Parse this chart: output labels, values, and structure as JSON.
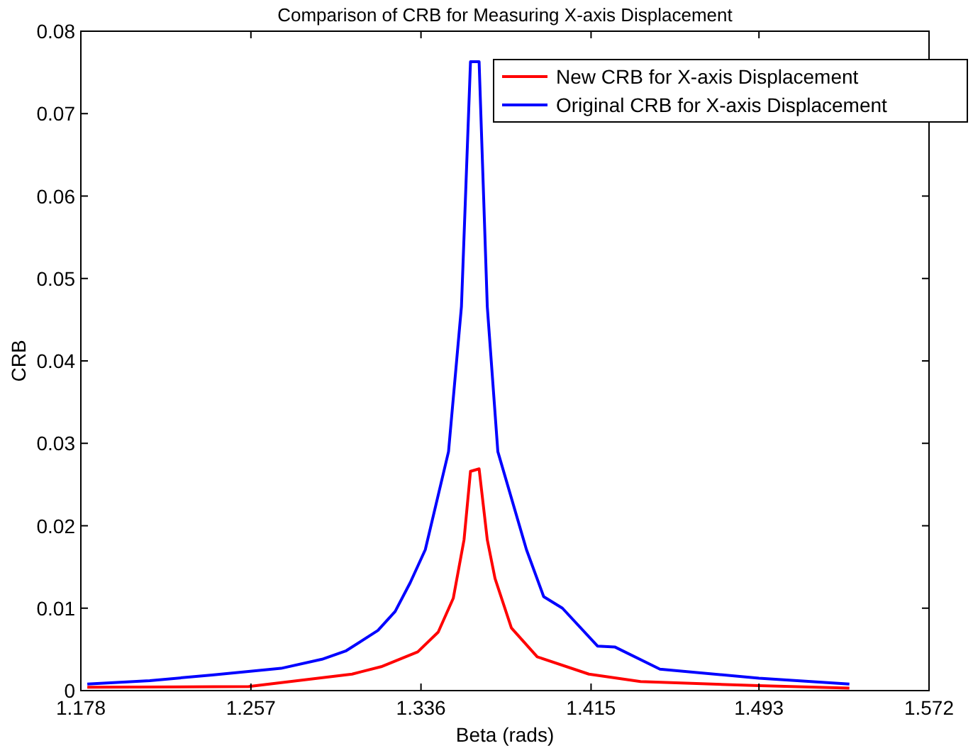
{
  "chart_data": {
    "type": "line",
    "title": "Comparison of CRB for Measuring X-axis Displacement",
    "xlabel": "Beta (rads)",
    "ylabel": "CRB",
    "xlim": [
      1.178,
      1.572
    ],
    "xticks": [
      1.178,
      1.257,
      1.336,
      1.415,
      1.493,
      1.572
    ],
    "ylim": [
      0,
      0.08
    ],
    "yticks": [
      0,
      0.01,
      0.02,
      0.03,
      0.04,
      0.05,
      0.06,
      0.07,
      0.08
    ],
    "grid": false,
    "legend": "top right",
    "line_style": "solid",
    "series": [
      {
        "name": "New CRB for X-axis Displacement",
        "color": "#ff0000",
        "x": [
          1.181,
          1.256,
          1.304,
          1.3175,
          1.3345,
          1.344,
          1.351,
          1.356,
          1.359,
          1.363,
          1.3668,
          1.3704,
          1.378,
          1.39,
          1.414,
          1.438,
          1.493,
          1.535
        ],
        "values": [
          0.0004,
          0.0005,
          0.002,
          0.0029,
          0.0047,
          0.0071,
          0.0112,
          0.0183,
          0.0266,
          0.0269,
          0.0183,
          0.0136,
          0.0076,
          0.0041,
          0.002,
          0.0011,
          0.0006,
          0.0003
        ]
      },
      {
        "name": "Original CRB for X-axis Displacement",
        "color": "#0000ff",
        "x": [
          1.181,
          1.21,
          1.239,
          1.271,
          1.29,
          1.301,
          1.316,
          1.324,
          1.331,
          1.338,
          1.3488,
          1.3548,
          1.359,
          1.363,
          1.3668,
          1.3717,
          1.385,
          1.393,
          1.4017,
          1.418,
          1.426,
          1.447,
          1.493,
          1.535
        ],
        "values": [
          0.0008,
          0.0012,
          0.0019,
          0.0027,
          0.0038,
          0.0048,
          0.0073,
          0.0096,
          0.0131,
          0.0171,
          0.029,
          0.0466,
          0.0763,
          0.0763,
          0.0466,
          0.029,
          0.0171,
          0.0114,
          0.01,
          0.0054,
          0.0053,
          0.0026,
          0.0015,
          0.0008
        ]
      }
    ]
  }
}
